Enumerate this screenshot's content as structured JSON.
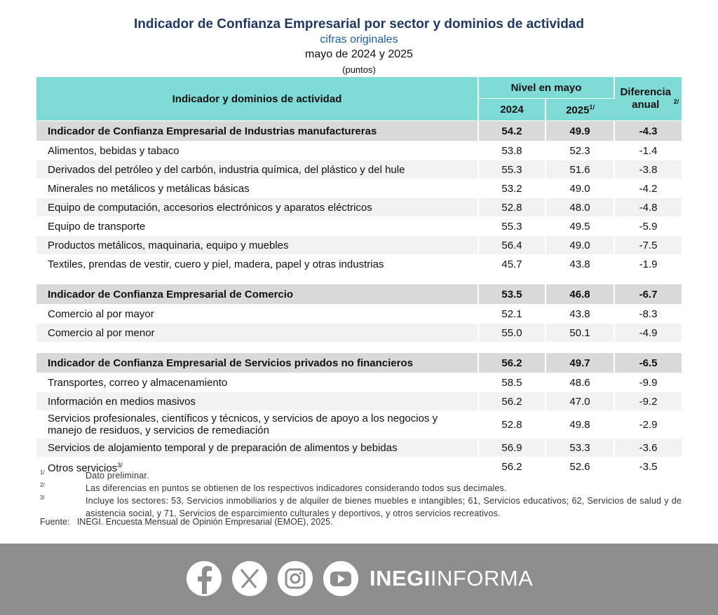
{
  "header": {
    "title": "Indicador de Confianza Empresarial por sector y dominios de actividad",
    "subtitle": "cifras originales",
    "period": "mayo de 2024 y 2025",
    "units": "(puntos)"
  },
  "table": {
    "columns": {
      "label": "Indicador y dominios de actividad",
      "level": "Nivel en mayo",
      "year1": "2024",
      "year2": "2025",
      "year2_note": "1/",
      "diff": "Diferencia anual",
      "diff_note": "2/"
    },
    "sections": [
      {
        "name": "Indicador de Confianza Empresarial de Industrias manufactureras",
        "values": [
          "54.2",
          "49.9",
          "-4.3"
        ],
        "rows": [
          {
            "label": "Alimentos, bebidas y tabaco",
            "values": [
              "53.8",
              "52.3",
              "-1.4"
            ]
          },
          {
            "label": "Derivados del petróleo y del carbón, industria química, del plástico y del hule",
            "values": [
              "55.3",
              "51.6",
              "-3.8"
            ]
          },
          {
            "label": "Minerales no metálicos y metálicas básicas",
            "values": [
              "53.2",
              "49.0",
              "-4.2"
            ]
          },
          {
            "label": "Equipo de computación, accesorios electrónicos y aparatos eléctricos",
            "values": [
              "52.8",
              "48.0",
              "-4.8"
            ]
          },
          {
            "label": "Equipo de transporte",
            "values": [
              "55.3",
              "49.5",
              "-5.9"
            ]
          },
          {
            "label": "Productos metálicos, maquinaria, equipo y muebles",
            "values": [
              "56.4",
              "49.0",
              "-7.5"
            ]
          },
          {
            "label": "Textiles, prendas de vestir, cuero y piel, madera, papel y otras industrias",
            "values": [
              "45.7",
              "43.8",
              "-1.9"
            ]
          }
        ]
      },
      {
        "name": "Indicador de Confianza Empresarial de Comercio",
        "values": [
          "53.5",
          "46.8",
          "-6.7"
        ],
        "rows": [
          {
            "label": "Comercio al por mayor",
            "values": [
              "52.1",
              "43.8",
              "-8.3"
            ]
          },
          {
            "label": "Comercio al por menor",
            "values": [
              "55.0",
              "50.1",
              "-4.9"
            ]
          }
        ]
      },
      {
        "name": "Indicador de Confianza Empresarial de Servicios privados no financieros",
        "values": [
          "56.2",
          "49.7",
          "-6.5"
        ],
        "rows": [
          {
            "label": "Transportes, correo y almacenamiento",
            "values": [
              "58.5",
              "48.6",
              "-9.9"
            ]
          },
          {
            "label": "Información en medios masivos",
            "values": [
              "56.2",
              "47.0",
              "-9.2"
            ]
          },
          {
            "label": "Servicios profesionales, científicos y técnicos, y servicios de apoyo a los negocios y manejo de residuos, y servicios de remediación",
            "values": [
              "52.8",
              "49.8",
              "-2.9"
            ]
          },
          {
            "label": "Servicios de alojamiento temporal y de preparación de alimentos y bebidas",
            "values": [
              "56.9",
              "53.3",
              "-3.6"
            ]
          },
          {
            "label": "Otros servicios",
            "note": "3/",
            "values": [
              "56.2",
              "52.6",
              "-3.5"
            ]
          }
        ]
      }
    ]
  },
  "footnotes": [
    {
      "mark": "1/",
      "text": "Dato preliminar."
    },
    {
      "mark": "2/",
      "text": "Las diferencias en puntos se obtienen de los respectivos indicadores considerando todos sus decimales."
    },
    {
      "mark": "3/",
      "text": "Incluye los sectores: 53, Servicios inmobiliarios y de alquiler de bienes muebles e intangibles; 61, Servicios educativos; 62, Servicios de salud y de asistencia social, y 71, Servicios de esparcimiento culturales y deportivos, y otros servicios recreativos."
    }
  ],
  "source": {
    "label": "Fuente:",
    "text": "INEGI. Encuesta Mensual de Opinión Empresarial (EMOE), 2025."
  },
  "footer": {
    "brand_bold": "INEGI",
    "brand": "INFORMA"
  }
}
